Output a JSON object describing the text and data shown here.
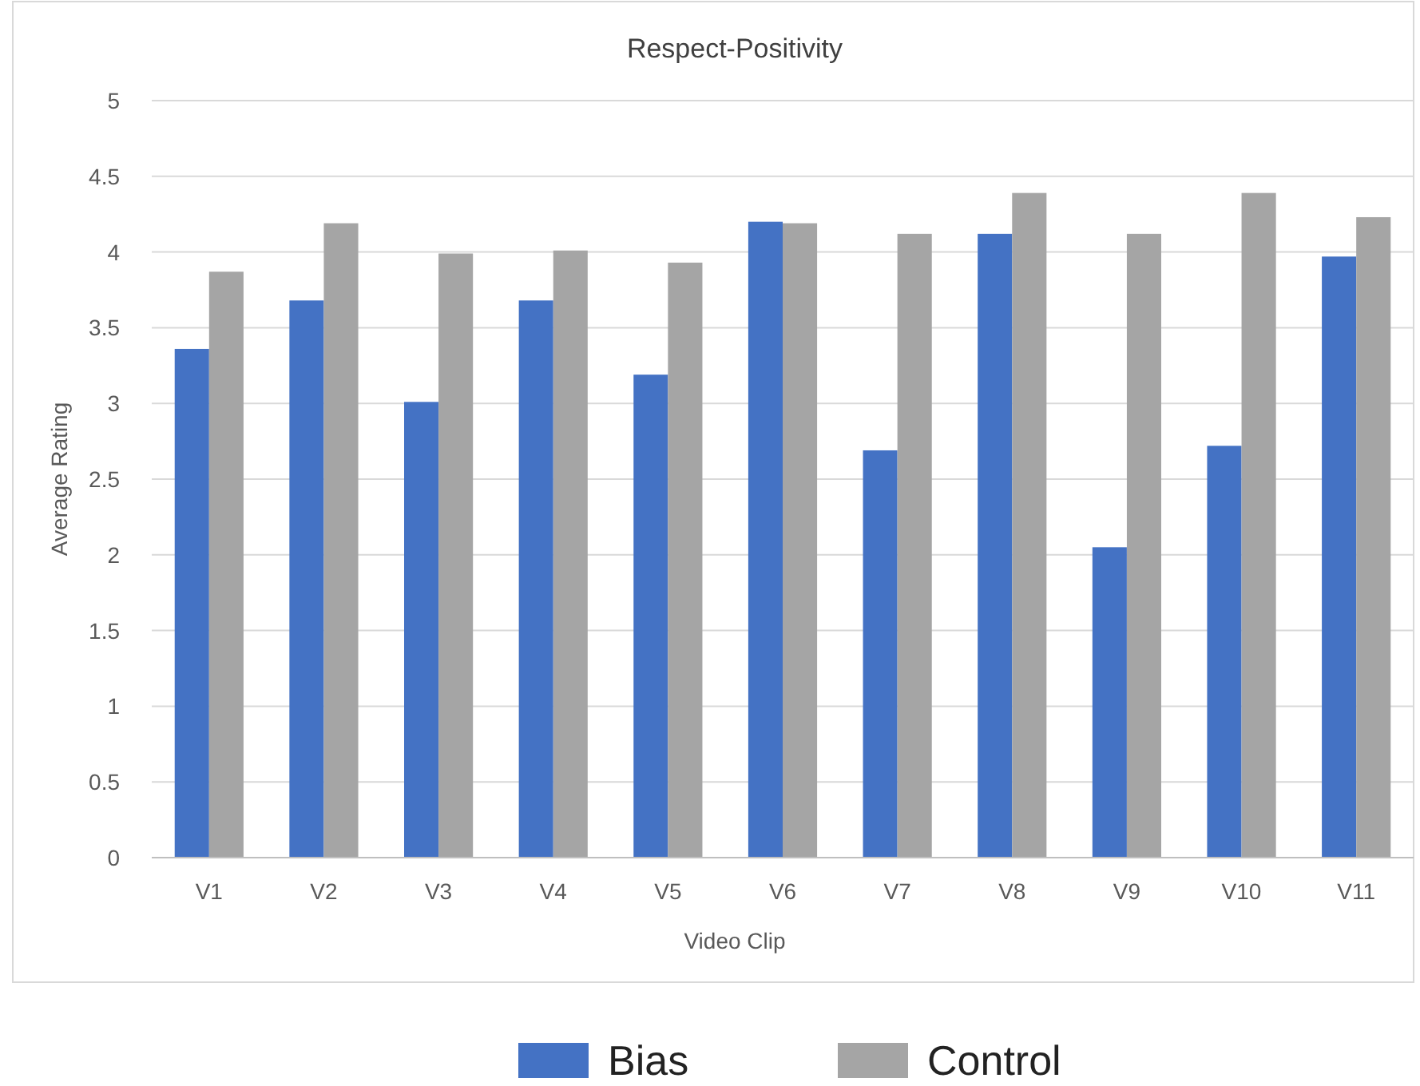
{
  "chart_data": {
    "type": "bar",
    "title": "Respect-Positivity",
    "xlabel": "Video Clip",
    "ylabel": "Average Rating",
    "categories": [
      "V1",
      "V2",
      "V3",
      "V4",
      "V5",
      "V6",
      "V7",
      "V8",
      "V9",
      "V10",
      "V11"
    ],
    "series": [
      {
        "name": "Bias",
        "color": "#4472c4",
        "values": [
          3.36,
          3.68,
          3.01,
          3.68,
          3.19,
          4.2,
          2.69,
          4.12,
          2.05,
          2.72,
          3.97
        ]
      },
      {
        "name": "Control",
        "color": "#a5a5a5",
        "values": [
          3.87,
          4.19,
          3.99,
          4.01,
          3.93,
          4.19,
          4.12,
          4.39,
          4.12,
          4.39,
          4.23
        ]
      }
    ],
    "ylim": [
      0,
      5
    ],
    "yticks": [
      0,
      0.5,
      1,
      1.5,
      2,
      2.5,
      3,
      3.5,
      4,
      4.5,
      5
    ],
    "grid": "y",
    "legend": "bottom"
  }
}
